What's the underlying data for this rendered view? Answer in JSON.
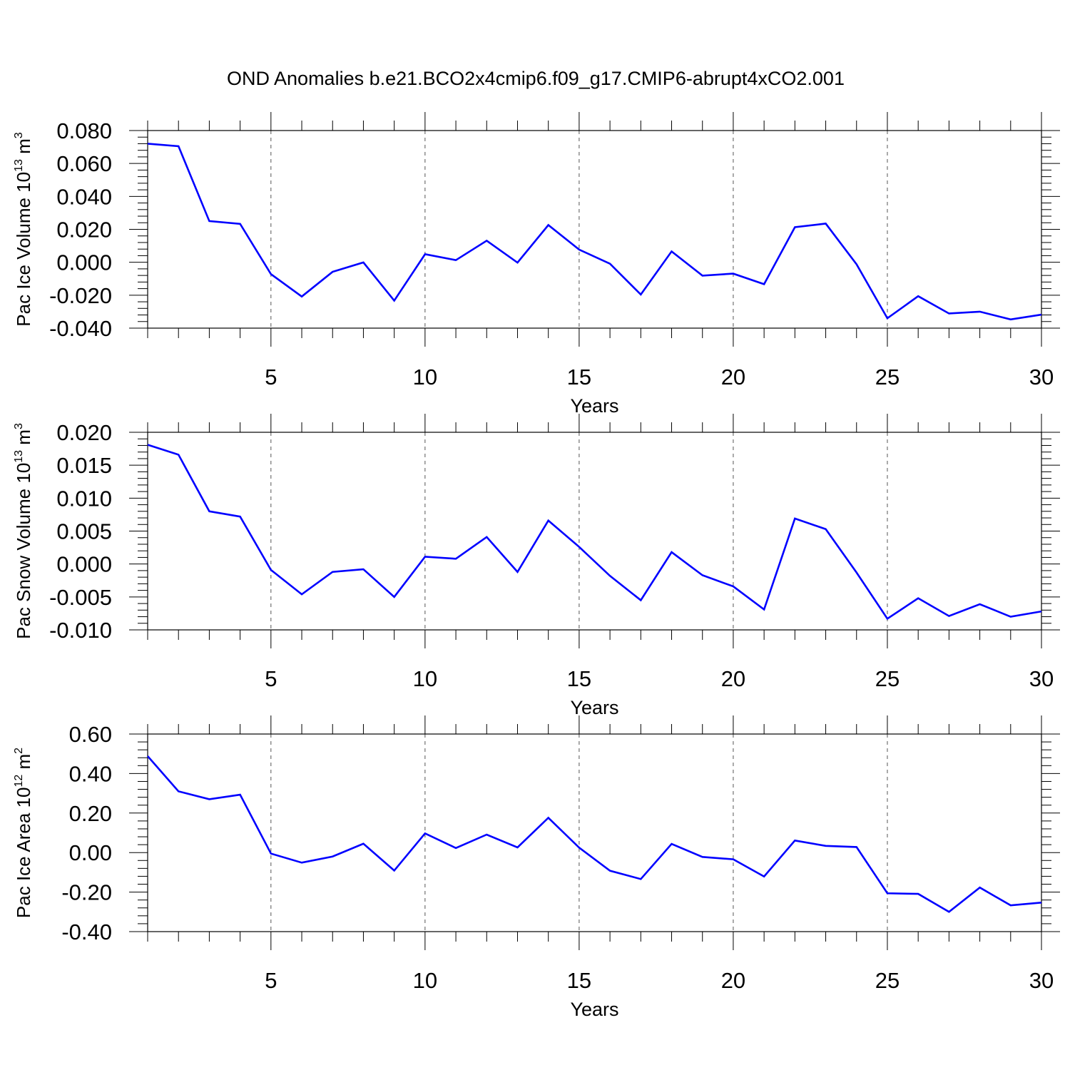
{
  "title": "OND Anomalies b.e21.BCO2x4cmip6.f09_g17.CMIP6-abrupt4xCO2.001",
  "line_color": "#0000ff",
  "chart_data": [
    {
      "type": "line",
      "ylabel": {
        "main": "Pac Ice Volume 10",
        "sup1": "13",
        "mid": " m",
        "sup2": "3"
      },
      "xlabel": "Years",
      "xlim": [
        1,
        30
      ],
      "ylim": [
        -0.04,
        0.08
      ],
      "x_ticks": [
        "5",
        "10",
        "15",
        "20",
        "25",
        "30"
      ],
      "y_ticks": [
        "0.080",
        "0.060",
        "0.040",
        "0.020",
        "0.000",
        "-0.020",
        "-0.040"
      ],
      "series": [
        {
          "x": [
            1,
            2,
            3,
            4,
            5,
            6,
            7,
            8,
            9,
            10,
            11,
            12,
            13,
            14,
            15,
            16,
            17,
            18,
            19,
            20,
            21,
            22,
            23,
            24,
            25,
            26,
            27,
            28,
            29,
            30
          ],
          "values": [
            0.072,
            0.0705,
            0.025,
            0.0233,
            -0.0072,
            -0.0208,
            -0.0058,
            -0.0001,
            -0.0233,
            0.0049,
            0.0013,
            0.0131,
            -0.0002,
            0.0226,
            0.0077,
            -0.0009,
            -0.0196,
            0.0066,
            -0.0081,
            -0.0069,
            -0.0133,
            0.0213,
            0.0235,
            -0.0012,
            -0.034,
            -0.0206,
            -0.0311,
            -0.03,
            -0.0347,
            -0.0318
          ]
        }
      ]
    },
    {
      "type": "line",
      "ylabel": {
        "main": "Pac Snow Volume 10",
        "sup1": "13",
        "mid": " m",
        "sup2": "3"
      },
      "xlabel": "Years",
      "xlim": [
        1,
        30
      ],
      "ylim": [
        -0.01,
        0.02
      ],
      "x_ticks": [
        "5",
        "10",
        "15",
        "20",
        "25",
        "30"
      ],
      "y_ticks": [
        "0.020",
        "0.015",
        "0.010",
        "0.005",
        "0.000",
        "-0.005",
        "-0.010"
      ],
      "series": [
        {
          "x": [
            1,
            2,
            3,
            4,
            5,
            6,
            7,
            8,
            9,
            10,
            11,
            12,
            13,
            14,
            15,
            16,
            17,
            18,
            19,
            20,
            21,
            22,
            23,
            24,
            25,
            26,
            27,
            28,
            29,
            30
          ],
          "values": [
            0.0181,
            0.0166,
            0.008,
            0.0072,
            -0.0009,
            -0.0046,
            -0.0012,
            -0.0008,
            -0.005,
            0.0011,
            0.0008,
            0.0041,
            -0.0012,
            0.0066,
            0.0026,
            -0.0018,
            -0.0055,
            0.0018,
            -0.0017,
            -0.0034,
            -0.0069,
            0.0069,
            0.0053,
            -0.0013,
            -0.0083,
            -0.0052,
            -0.0079,
            -0.0061,
            -0.008,
            -0.0072
          ]
        }
      ]
    },
    {
      "type": "line",
      "ylabel": {
        "main": "Pac Ice Area 10",
        "sup1": "12",
        "mid": " m",
        "sup2": "2"
      },
      "xlabel": "Years",
      "xlim": [
        1,
        30
      ],
      "ylim": [
        -0.4,
        0.6
      ],
      "x_ticks": [
        "5",
        "10",
        "15",
        "20",
        "25",
        "30"
      ],
      "y_ticks": [
        "0.60",
        "0.40",
        "0.20",
        "0.00",
        "-0.20",
        "-0.40"
      ],
      "series": [
        {
          "x": [
            1,
            2,
            3,
            4,
            5,
            6,
            7,
            8,
            9,
            10,
            11,
            12,
            13,
            14,
            15,
            16,
            17,
            18,
            19,
            20,
            21,
            22,
            23,
            24,
            25,
            26,
            27,
            28,
            29,
            30
          ],
          "values": [
            0.488,
            0.31,
            0.27,
            0.293,
            -0.005,
            -0.051,
            -0.02,
            0.045,
            -0.091,
            0.097,
            0.023,
            0.091,
            0.026,
            0.176,
            0.025,
            -0.092,
            -0.134,
            0.044,
            -0.022,
            -0.034,
            -0.121,
            0.061,
            0.034,
            0.028,
            -0.206,
            -0.209,
            -0.3,
            -0.177,
            -0.267,
            -0.253
          ]
        }
      ]
    }
  ]
}
